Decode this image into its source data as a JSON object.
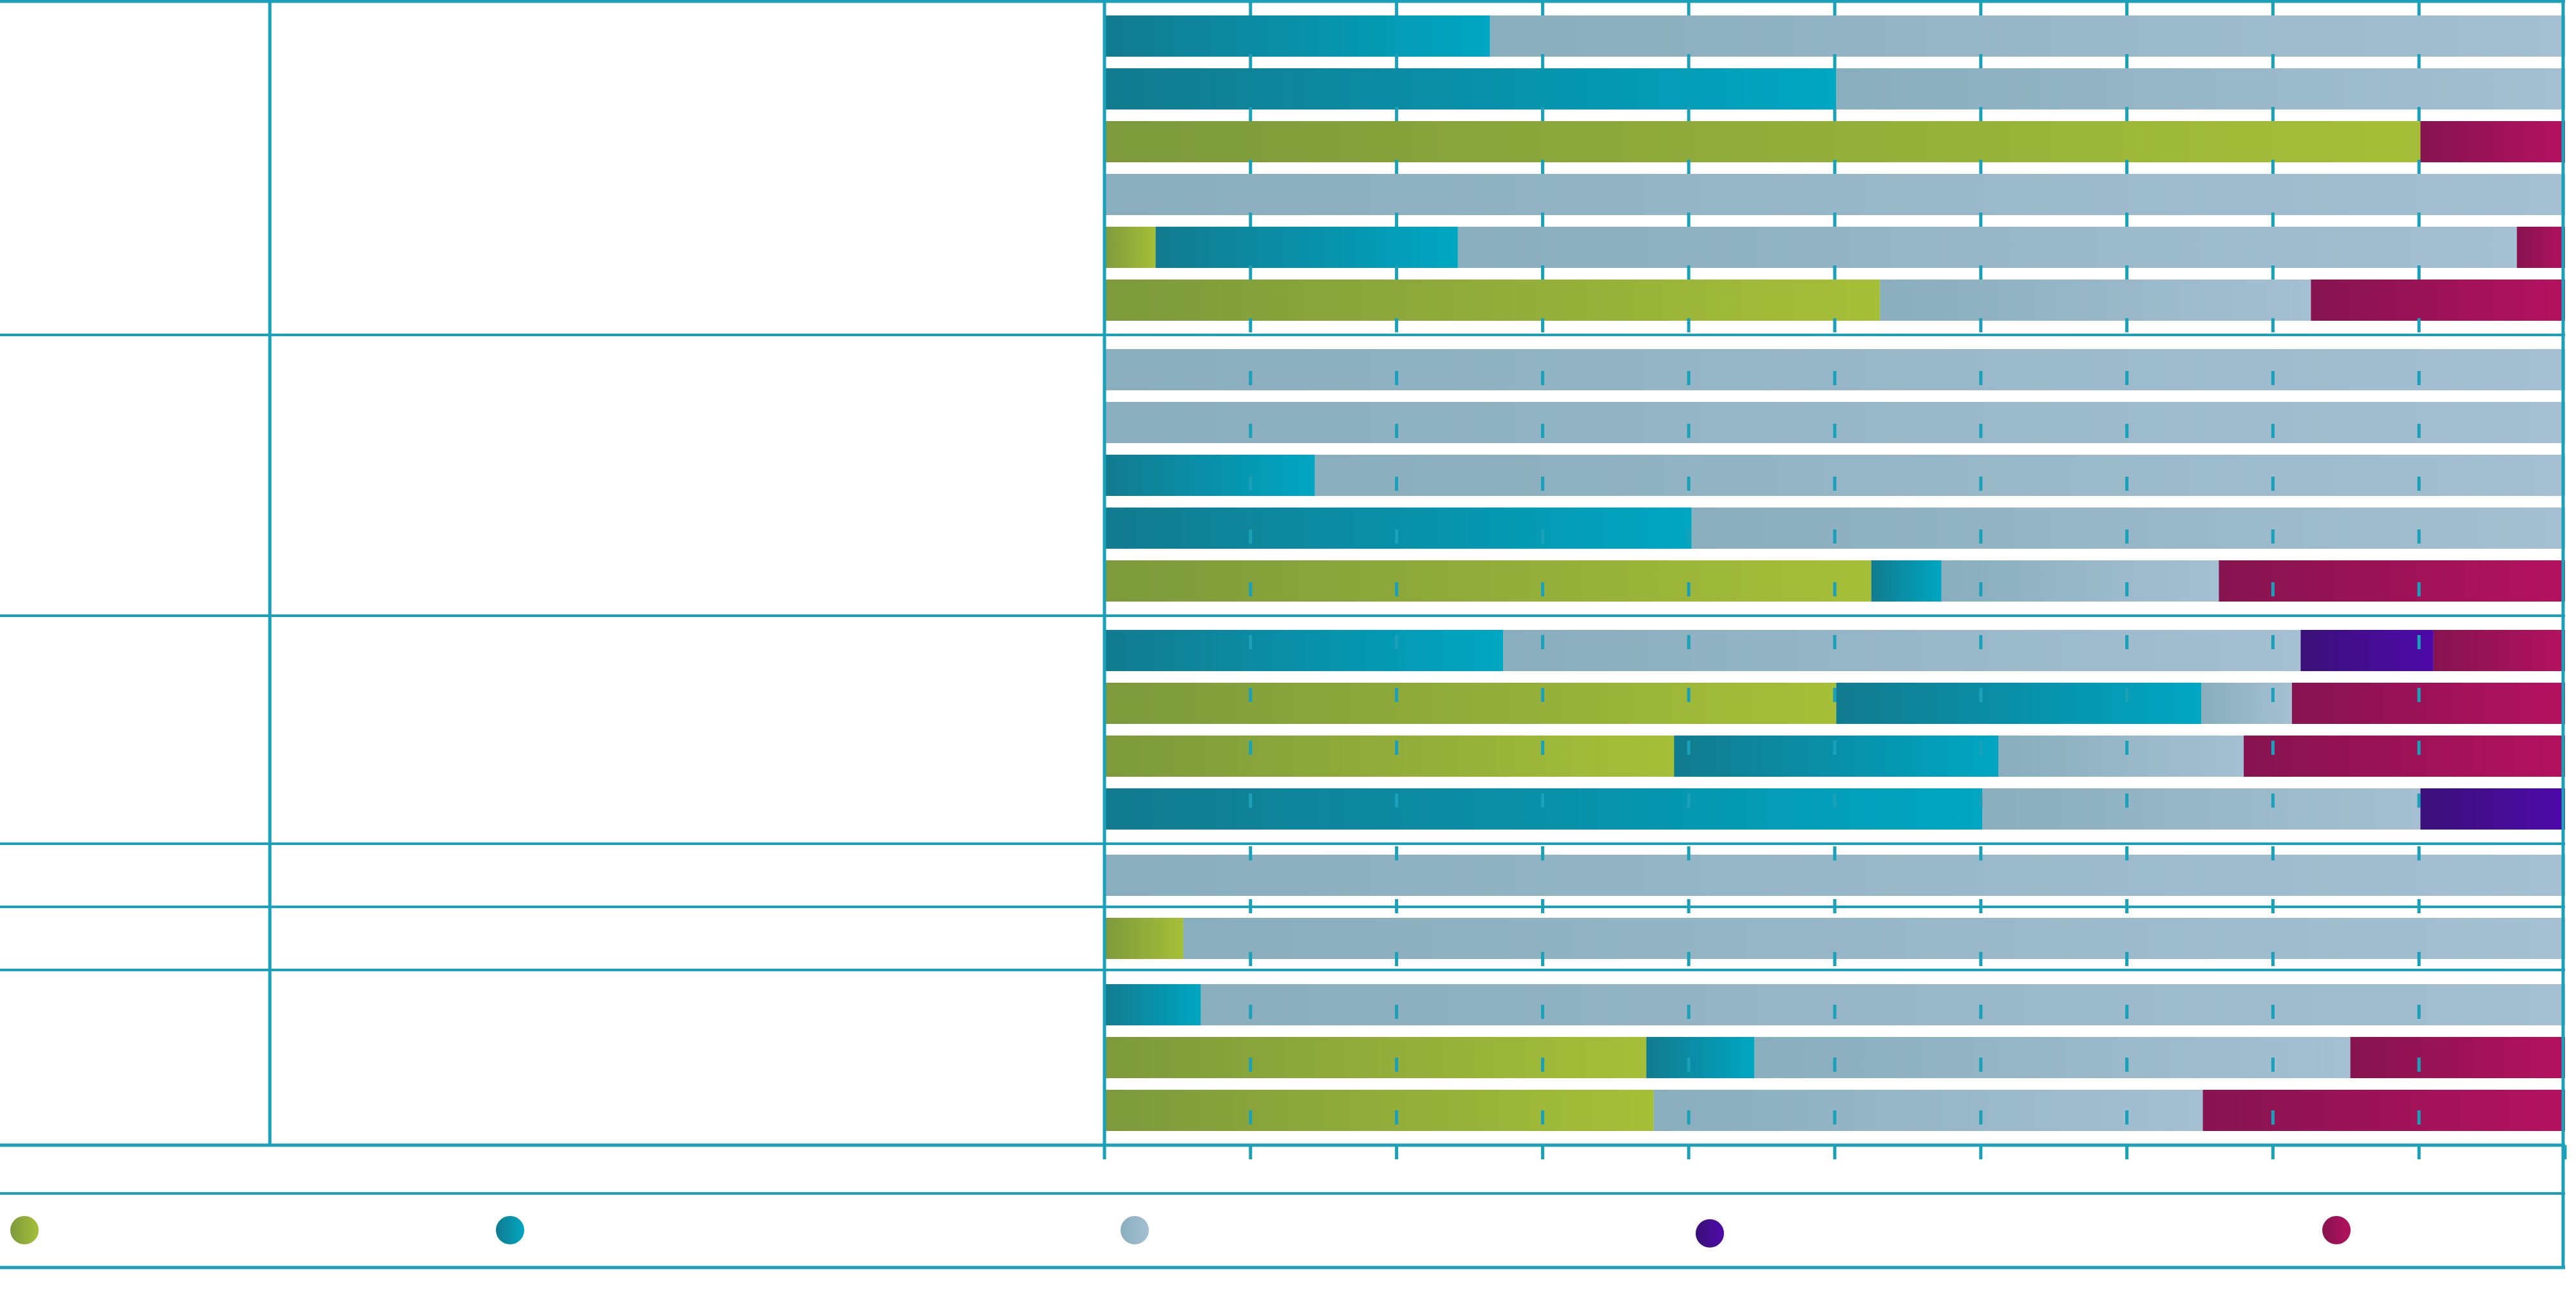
{
  "chart_data": {
    "type": "bar",
    "stacked": true,
    "orientation": "horizontal",
    "title": "",
    "xlabel": "",
    "ylabel": "",
    "xlim": [
      0,
      100
    ],
    "x_ticks": [
      0,
      10,
      20,
      30,
      40,
      50,
      60,
      70,
      80,
      90,
      100
    ],
    "grid": true,
    "legend_position": "bottom",
    "series": [
      {
        "name": "",
        "color_start": "#7d9a3c",
        "color_end": "#a6bf38"
      },
      {
        "name": "",
        "color_start": "#127b8f",
        "color_end": "#00a6c2"
      },
      {
        "name": "",
        "color_start": "#89aebd",
        "color_end": "#a4c0d2"
      },
      {
        "name": "",
        "color_start": "#3a1078",
        "color_end": "#4e0aaa"
      },
      {
        "name": "",
        "color_start": "#861450",
        "color_end": "#b4115f"
      }
    ],
    "groups": [
      {
        "label": "",
        "rows": [
          {
            "label": "",
            "values": [
              0,
              26.4,
              73.6,
              0,
              0
            ]
          },
          {
            "label": "",
            "values": [
              0,
              50.1,
              49.9,
              0,
              0
            ]
          },
          {
            "label": "",
            "values": [
              90.1,
              0,
              0,
              0,
              9.9
            ]
          },
          {
            "label": "",
            "values": [
              0,
              0,
              100,
              0,
              0
            ]
          },
          {
            "label": "",
            "values": [
              3.5,
              20.7,
              72.5,
              0,
              3.3
            ]
          },
          {
            "label": "",
            "values": [
              53.1,
              0,
              29.5,
              0,
              17.4
            ]
          }
        ]
      },
      {
        "label": "",
        "rows": [
          {
            "label": "",
            "values": [
              0,
              0,
              100,
              0,
              0
            ]
          },
          {
            "label": "",
            "values": [
              0,
              0,
              100,
              0,
              0
            ]
          },
          {
            "label": "",
            "values": [
              0,
              14.4,
              85.6,
              0,
              0
            ]
          },
          {
            "label": "",
            "values": [
              0,
              40.2,
              59.8,
              0,
              0
            ]
          },
          {
            "label": "",
            "values": [
              52.5,
              4.8,
              19.0,
              0,
              23.7
            ]
          }
        ]
      },
      {
        "label": "",
        "rows": [
          {
            "label": "",
            "values": [
              0,
              27.3,
              54.6,
              9.1,
              9.0
            ]
          },
          {
            "label": "",
            "values": [
              50.1,
              25.0,
              6.2,
              0,
              18.7
            ]
          },
          {
            "label": "",
            "values": [
              39.0,
              22.2,
              16.8,
              0,
              22.0
            ]
          },
          {
            "label": "",
            "values": [
              0,
              60.1,
              30.0,
              9.9,
              0
            ]
          }
        ]
      },
      {
        "label": "",
        "rows": [
          {
            "label": "",
            "values": [
              0,
              0,
              100,
              0,
              0
            ]
          }
        ]
      },
      {
        "label": "",
        "rows": [
          {
            "label": "",
            "values": [
              5.4,
              0,
              94.6,
              0,
              0
            ]
          }
        ]
      },
      {
        "label": "",
        "rows": [
          {
            "label": "",
            "values": [
              0,
              6.6,
              93.4,
              0,
              0
            ]
          },
          {
            "label": "",
            "values": [
              37.1,
              7.4,
              40.8,
              0,
              14.7
            ]
          },
          {
            "label": "",
            "values": [
              37.6,
              0,
              37.6,
              0,
              24.8
            ]
          }
        ]
      }
    ]
  }
}
